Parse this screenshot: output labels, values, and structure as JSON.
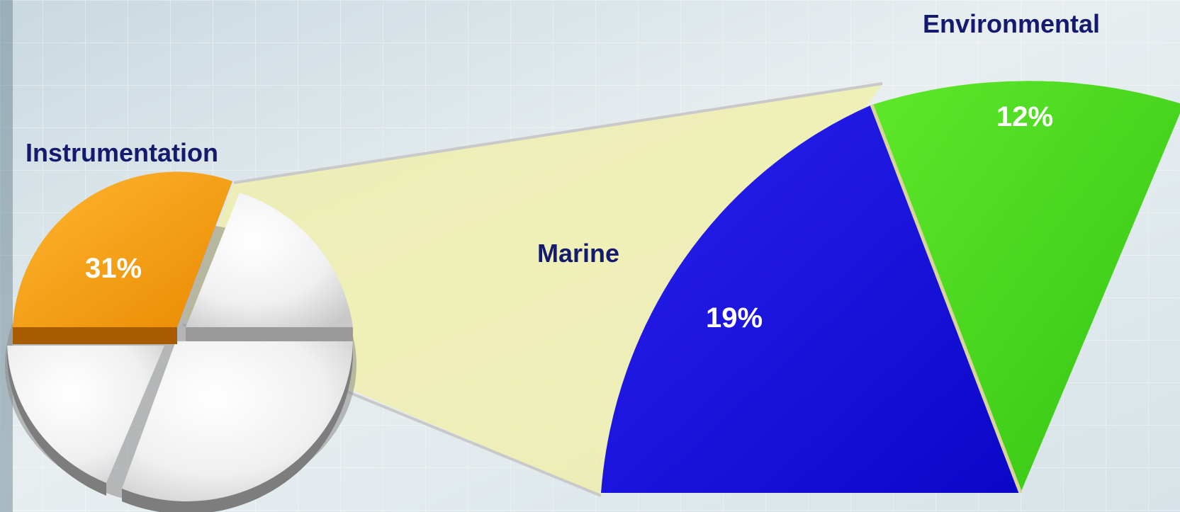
{
  "chart_data": {
    "type": "pie",
    "subtype": "pie-of-pie",
    "slices": [
      {
        "name": "Instrumentation",
        "value": 31,
        "value_label": "31%",
        "color": "#f39a0c",
        "exploded": true
      },
      {
        "name": "Marine",
        "value": 19,
        "value_label": "19%",
        "color": "#1f14e6",
        "in_detail": true
      },
      {
        "name": "Environmental",
        "value": 12,
        "value_label": "12%",
        "color": "#44d21c",
        "in_detail": true
      },
      {
        "name": "",
        "value": null,
        "value_label": "",
        "color": "#f2f2f2"
      },
      {
        "name": "",
        "value": null,
        "value_label": "",
        "color": "#f2f2f2"
      },
      {
        "name": "",
        "value": null,
        "value_label": "",
        "color": "#f2f2f2"
      }
    ],
    "connector_color": "#f1efa6",
    "label_color": "#141a6e",
    "value_label_color": "#ffffff"
  }
}
